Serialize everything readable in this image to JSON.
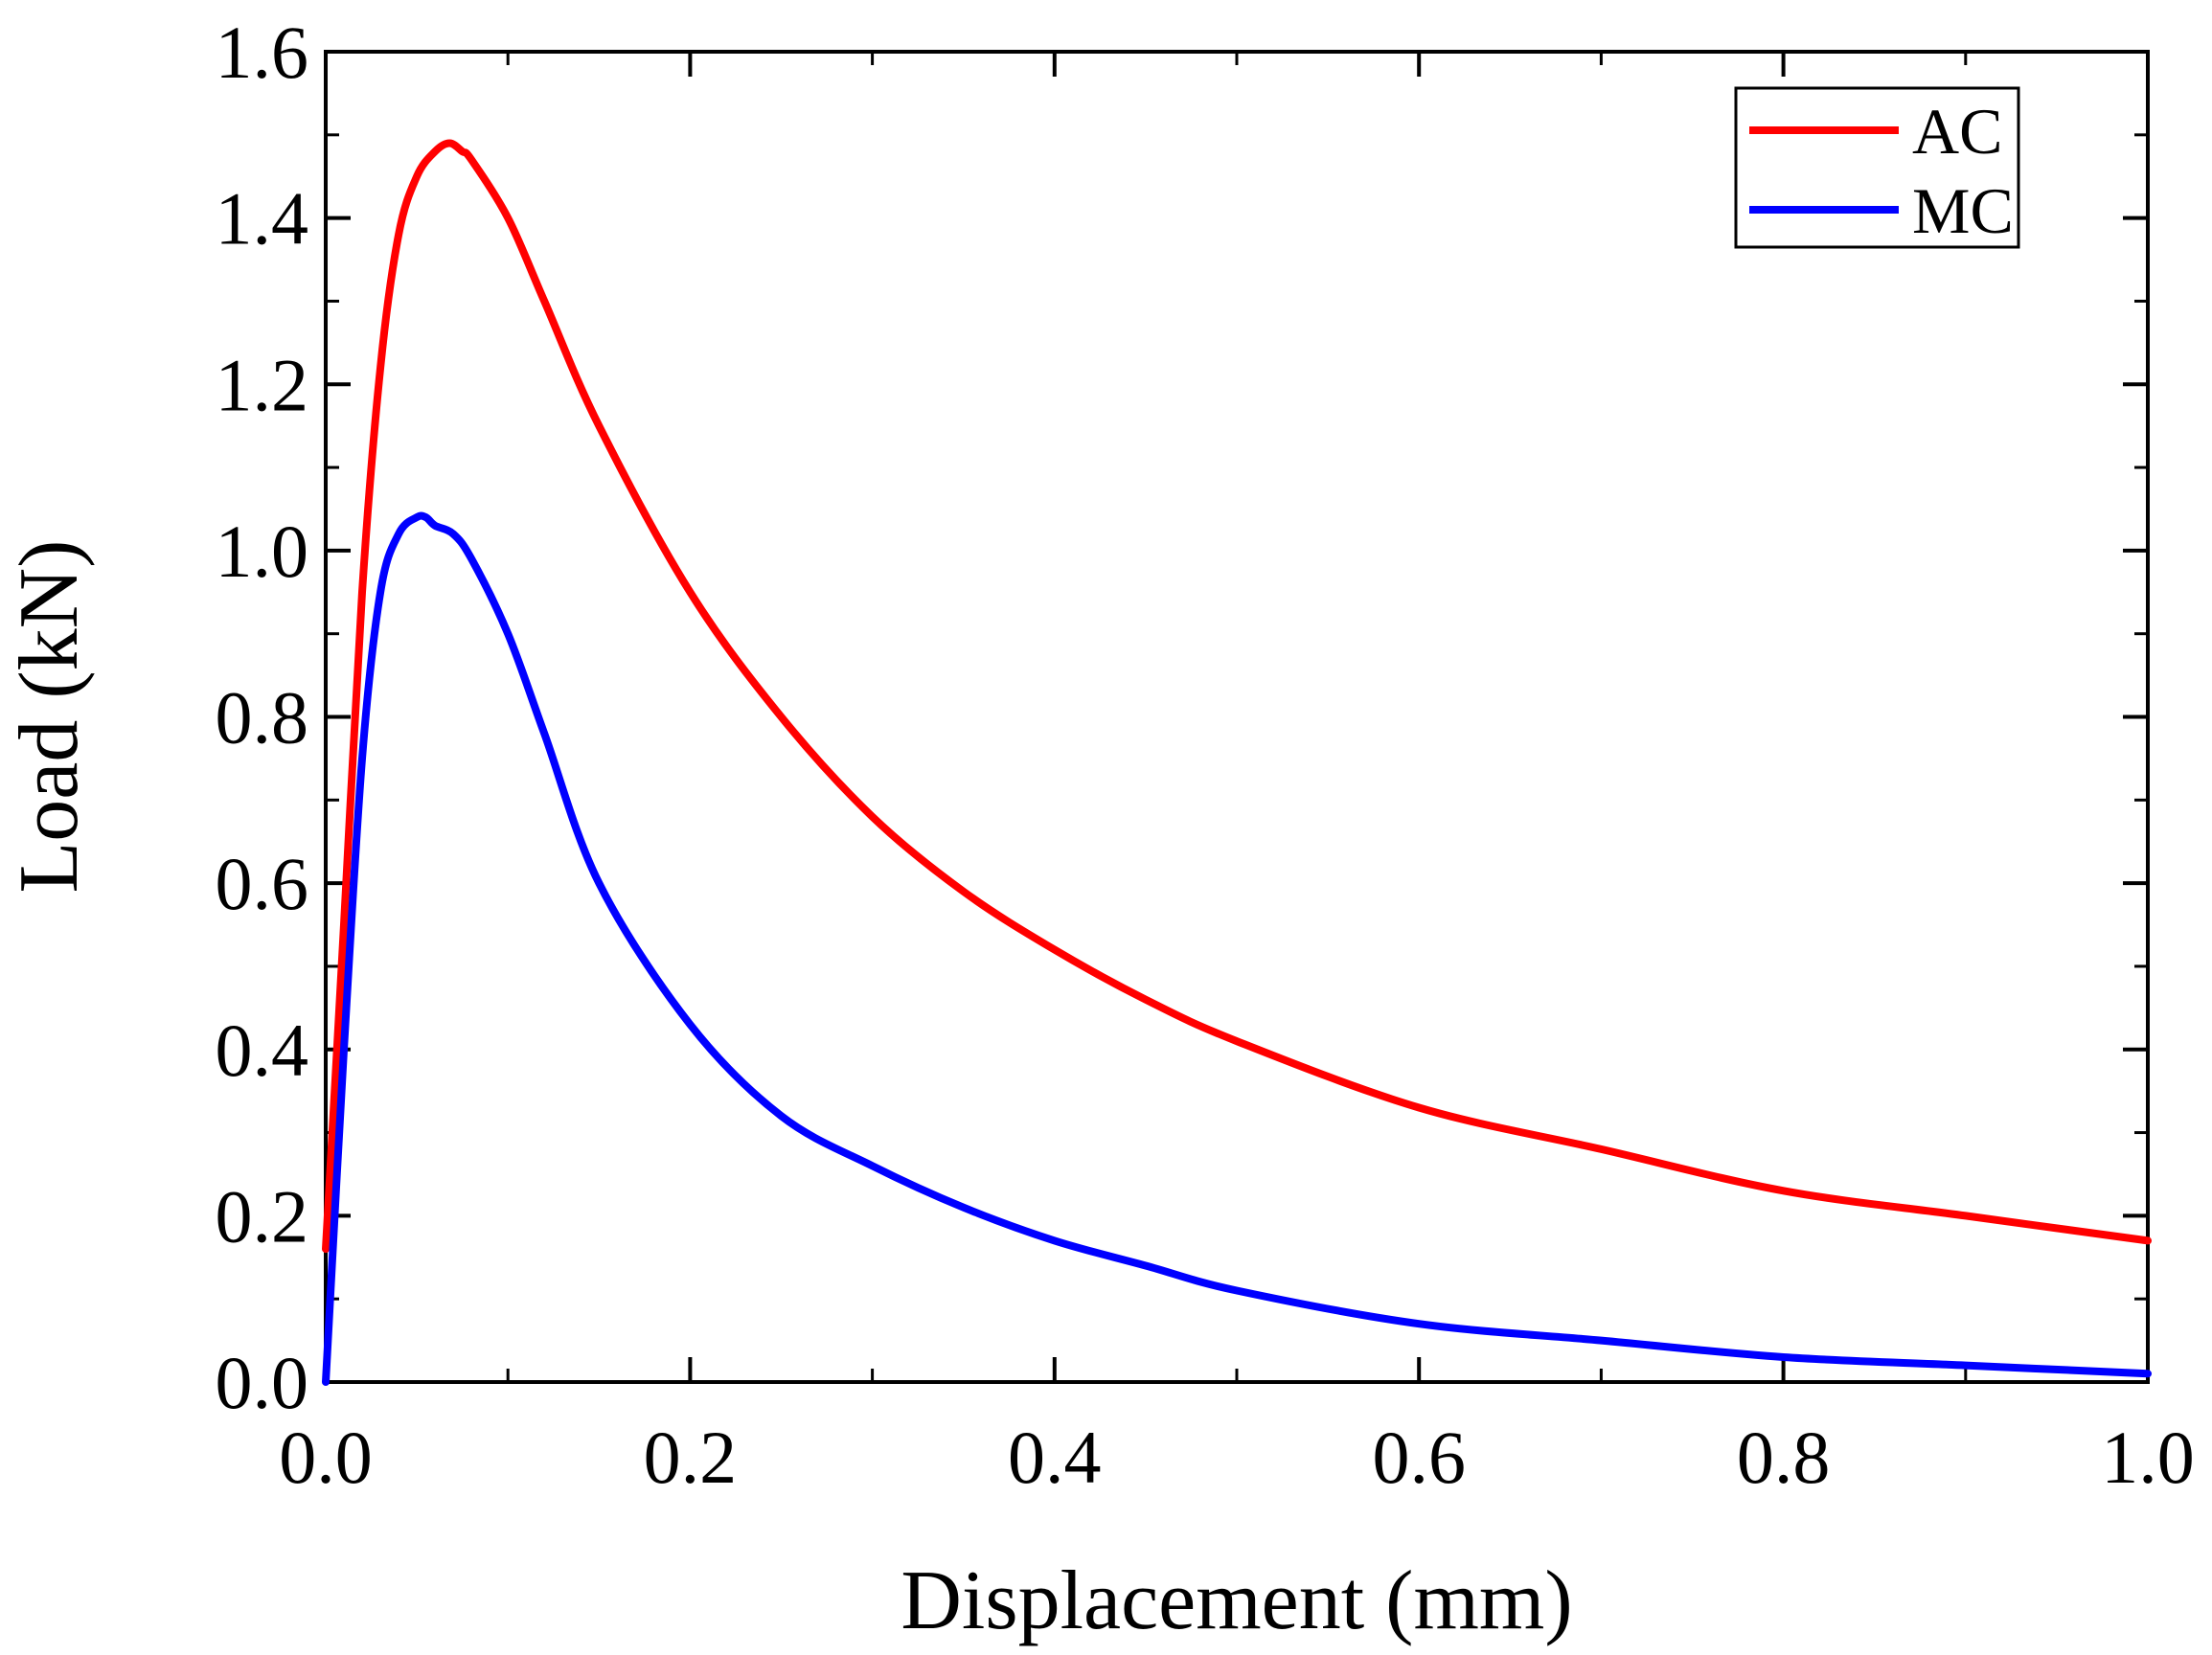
{
  "chart_data": {
    "type": "line",
    "title": "",
    "xlabel": "Displacement (mm)",
    "ylabel": "Load (kN)",
    "xlim": [
      0.0,
      1.0
    ],
    "ylim": [
      0.0,
      1.6
    ],
    "xticks": [
      0.0,
      0.2,
      0.4,
      0.6,
      0.8,
      1.0
    ],
    "xtick_labels": [
      "0.0",
      "0.2",
      "0.4",
      "0.6",
      "0.8",
      "1.0"
    ],
    "yticks": [
      0.0,
      0.2,
      0.4,
      0.6,
      0.8,
      1.0,
      1.2,
      1.4,
      1.6
    ],
    "ytick_labels": [
      "0.0",
      "0.2",
      "0.4",
      "0.6",
      "0.8",
      "1.0",
      "1.2",
      "1.4",
      "1.6"
    ],
    "grid": false,
    "legend_position": "top-right",
    "series": [
      {
        "name": "AC",
        "color": "#ff0000",
        "x": [
          0.0,
          0.01,
          0.02,
          0.03,
          0.04,
          0.05,
          0.06,
          0.068,
          0.075,
          0.08,
          0.1,
          0.12,
          0.15,
          0.2,
          0.25,
          0.3,
          0.35,
          0.4,
          0.45,
          0.5,
          0.6,
          0.7,
          0.8,
          0.9,
          1.0
        ],
        "y": [
          0.16,
          0.55,
          0.95,
          1.22,
          1.38,
          1.45,
          1.48,
          1.49,
          1.48,
          1.47,
          1.4,
          1.3,
          1.15,
          0.95,
          0.8,
          0.68,
          0.59,
          0.52,
          0.46,
          0.41,
          0.33,
          0.28,
          0.23,
          0.2,
          0.17
        ]
      },
      {
        "name": "MC",
        "color": "#0000ff",
        "x": [
          0.0,
          0.01,
          0.02,
          0.03,
          0.04,
          0.05,
          0.055,
          0.06,
          0.07,
          0.08,
          0.1,
          0.12,
          0.15,
          0.2,
          0.25,
          0.3,
          0.35,
          0.4,
          0.45,
          0.5,
          0.6,
          0.7,
          0.8,
          0.9,
          1.0
        ],
        "y": [
          0.0,
          0.4,
          0.75,
          0.95,
          1.02,
          1.04,
          1.04,
          1.03,
          1.02,
          0.99,
          0.9,
          0.78,
          0.6,
          0.43,
          0.32,
          0.26,
          0.21,
          0.17,
          0.14,
          0.11,
          0.07,
          0.05,
          0.03,
          0.02,
          0.01
        ]
      }
    ]
  }
}
